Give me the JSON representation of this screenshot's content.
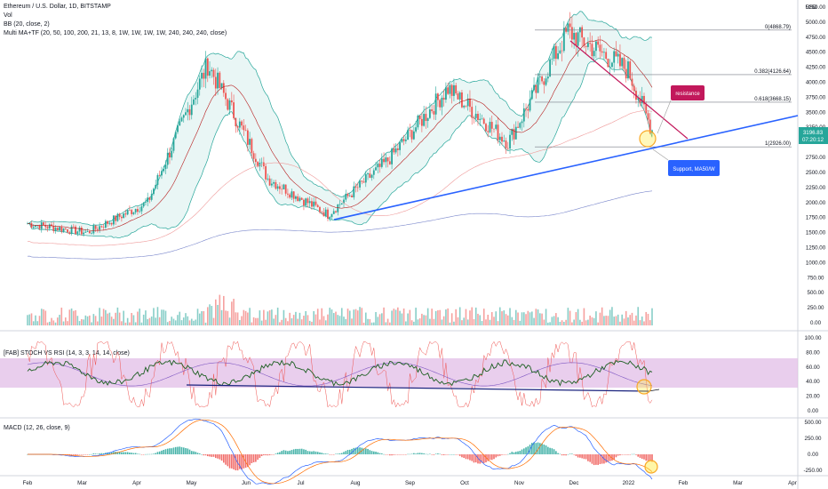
{
  "header": {
    "symbol": "Ethereum / U.S. Dollar, 1D, BITSTAMP",
    "vol": "Vol",
    "bb": "BB (20, close, 2)",
    "ma": "Multi MA+TF (20, 50, 100, 200, 21, 13, 8, 1W, 1W, 1W, 1W, 240, 240, 240, close)"
  },
  "currency": "USD",
  "last_price": {
    "value": "3196.83",
    "timer": "07:20:12"
  },
  "annotations": {
    "resistance": "resistance",
    "support": "Support, MA50/W"
  },
  "fib_levels": [
    {
      "label": "0(4868.79)",
      "value": 4868.79
    },
    {
      "label": "0.382(4126.64)",
      "value": 4126.64
    },
    {
      "label": "0.618(3668.15)",
      "value": 3668.15
    },
    {
      "label": "1(2926.00)",
      "value": 2926.0
    }
  ],
  "stoch_rsi": {
    "title": "[FAB] STOCH VS RSI (14, 3, 3, 14, 14, close)"
  },
  "macd": {
    "title": "MACD (12, 26, close, 9)"
  },
  "colors": {
    "up": "#26a69a",
    "down": "#ef5350",
    "trend": "#2962ff",
    "resistance": "#c2185b",
    "bb": "#26a69a",
    "highlight": "#ffeb3b"
  },
  "chart_data": {
    "type": "candlestick",
    "x_labels": [
      "Feb",
      "Mar",
      "Apr",
      "May",
      "Jun",
      "Jul",
      "Aug",
      "Sep",
      "Oct",
      "Nov",
      "Dec",
      "2022",
      "Feb",
      "Mar",
      "Apr"
    ],
    "price_ticks": [
      "5250.00",
      "5000.00",
      "4750.00",
      "4500.00",
      "4250.00",
      "4000.00",
      "3750.00",
      "3500.00",
      "3250.00",
      "3000.00",
      "2750.00",
      "2500.00",
      "2250.00",
      "2000.00",
      "1750.00",
      "1500.00",
      "1250.00",
      "1000.00",
      "750.00",
      "500.00",
      "250.00",
      "0.00"
    ],
    "stoch_ticks": [
      "100.00",
      "80.00",
      "60.00",
      "40.00",
      "20.00",
      "0.00"
    ],
    "macd_ticks": [
      "500.00",
      "250.00",
      "0.00",
      "-250.00"
    ],
    "price_key_points": [
      {
        "month": "Feb",
        "value": 1650
      },
      {
        "month": "Mar",
        "value": 1500
      },
      {
        "month": "Apr",
        "value": 2000
      },
      {
        "month": "May",
        "value": 4300
      },
      {
        "month": "Jun",
        "value": 2400
      },
      {
        "month": "Jul",
        "value": 1800
      },
      {
        "month": "Aug",
        "value": 2700
      },
      {
        "month": "Sep",
        "value": 3900
      },
      {
        "month": "Oct",
        "value": 3000
      },
      {
        "month": "Nov",
        "value": 4850
      },
      {
        "month": "Dec",
        "value": 4200
      },
      {
        "month": "2022",
        "value": 3200
      }
    ]
  }
}
